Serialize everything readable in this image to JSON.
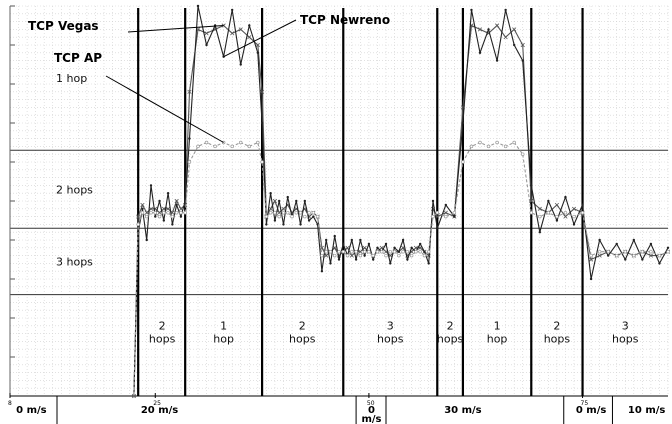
{
  "chart_data": {
    "type": "line",
    "xlim": [
      8,
      85
    ],
    "ylim": [
      0,
      1.0
    ],
    "grid": true,
    "x_ticks": [
      {
        "value": 8,
        "label": "8"
      },
      {
        "value": 25,
        "label": "25"
      },
      {
        "value": 50,
        "label": "50"
      },
      {
        "value": 75,
        "label": "75"
      }
    ],
    "hop_bands": [
      {
        "label": "1 hop",
        "range": [
          0.63,
          1.0
        ]
      },
      {
        "label": "2 hops",
        "range": [
          0.43,
          0.63
        ]
      },
      {
        "label": "3 hops",
        "range": [
          0.26,
          0.43
        ]
      }
    ],
    "band_lines": [
      0.63,
      0.43,
      0.26
    ],
    "phase_lines": [
      23,
      28.5,
      37.5,
      47,
      58,
      61,
      69,
      75
    ],
    "phase_labels": [
      {
        "x": 25.8,
        "lines": [
          "2",
          "hops"
        ]
      },
      {
        "x": 33,
        "lines": [
          "1",
          "hop"
        ]
      },
      {
        "x": 42.2,
        "lines": [
          "2",
          "hops"
        ]
      },
      {
        "x": 52.5,
        "lines": [
          "3",
          "hops"
        ]
      },
      {
        "x": 59.5,
        "lines": [
          "2",
          "hops"
        ]
      },
      {
        "x": 65,
        "lines": [
          "1",
          "hop"
        ]
      },
      {
        "x": 72,
        "lines": [
          "2",
          "hops"
        ]
      },
      {
        "x": 80,
        "lines": [
          "3",
          "hops"
        ]
      }
    ],
    "speed_dividers": [
      13.5,
      48.5,
      52,
      72.8,
      78.5
    ],
    "speed_labels": [
      {
        "x": 10.5,
        "lines": [
          "0 m/s"
        ]
      },
      {
        "x": 25.5,
        "lines": [
          "20 m/s"
        ]
      },
      {
        "x": 50.3,
        "lines": [
          "0",
          "m/s"
        ]
      },
      {
        "x": 61,
        "lines": [
          "30 m/s"
        ]
      },
      {
        "x": 76,
        "lines": [
          "0 m/s"
        ]
      },
      {
        "x": 82.5,
        "lines": [
          "10 m/s"
        ]
      }
    ],
    "series": [
      {
        "name": "TCP Vegas",
        "x": [
          8,
          22.5,
          23,
          23.5,
          24,
          24.5,
          25,
          25.5,
          26,
          26.5,
          27,
          27.5,
          28,
          28.5,
          29,
          30,
          31,
          32,
          33,
          34,
          35,
          36,
          37,
          37.5,
          38,
          38.5,
          39,
          39.5,
          40,
          40.5,
          41,
          41.5,
          42,
          42.5,
          43,
          43.5,
          44,
          44.5,
          45,
          45.5,
          46,
          46.5,
          47,
          47.5,
          48,
          48.5,
          49,
          49.5,
          50,
          50.5,
          51,
          51.5,
          52,
          52.5,
          53,
          53.5,
          54,
          54.5,
          55,
          55.5,
          56,
          56.5,
          57,
          57.5,
          58,
          59,
          60,
          61,
          62,
          63,
          64,
          65,
          66,
          67,
          68,
          69,
          70,
          71,
          72,
          73,
          74,
          75,
          76,
          77,
          78,
          79,
          80,
          81,
          82,
          83,
          84,
          85
        ],
        "y": [
          0,
          0,
          0.46,
          0.49,
          0.47,
          0.48,
          0.48,
          0.47,
          0.48,
          0.48,
          0.47,
          0.5,
          0.48,
          0.49,
          0.78,
          0.94,
          0.93,
          0.94,
          0.95,
          0.93,
          0.94,
          0.92,
          0.9,
          0.78,
          0.46,
          0.48,
          0.5,
          0.47,
          0.48,
          0.49,
          0.47,
          0.48,
          0.47,
          0.48,
          0.46,
          0.47,
          0.46,
          0.38,
          0.36,
          0.37,
          0.38,
          0.36,
          0.37,
          0.38,
          0.36,
          0.37,
          0.37,
          0.38,
          0.37,
          0.36,
          0.37,
          0.38,
          0.37,
          0.36,
          0.37,
          0.37,
          0.38,
          0.36,
          0.37,
          0.38,
          0.38,
          0.37,
          0.36,
          0.48,
          0.46,
          0.47,
          0.46,
          0.74,
          0.95,
          0.94,
          0.93,
          0.95,
          0.92,
          0.94,
          0.9,
          0.5,
          0.48,
          0.47,
          0.49,
          0.46,
          0.48,
          0.47,
          0.35,
          0.36,
          0.37,
          0.36,
          0.37,
          0.36,
          0.37,
          0.36,
          0.36,
          0.37
        ]
      },
      {
        "name": "TCP Newreno",
        "x": [
          8,
          22.5,
          23,
          23.5,
          24,
          24.5,
          25,
          25.5,
          26,
          26.5,
          27,
          27.5,
          28,
          28.5,
          29,
          30,
          31,
          32,
          33,
          34,
          35,
          36,
          37,
          37.5,
          38,
          38.5,
          39,
          39.5,
          40,
          40.5,
          41,
          41.5,
          42,
          42.5,
          43,
          43.5,
          44,
          44.5,
          45,
          45.5,
          46,
          46.5,
          47,
          47.5,
          48,
          48.5,
          49,
          49.5,
          50,
          50.5,
          51,
          51.5,
          52,
          52.5,
          53,
          53.5,
          54,
          54.5,
          55,
          55.5,
          56,
          56.5,
          57,
          57.5,
          58,
          59,
          60,
          61,
          62,
          63,
          64,
          65,
          66,
          67,
          68,
          69,
          70,
          71,
          72,
          73,
          74,
          75,
          76,
          77,
          78,
          79,
          80,
          81,
          82,
          83,
          84,
          85
        ],
        "y": [
          0,
          0,
          0.42,
          0.48,
          0.4,
          0.54,
          0.46,
          0.5,
          0.45,
          0.52,
          0.44,
          0.49,
          0.46,
          0.5,
          0.66,
          1.0,
          0.9,
          0.95,
          0.87,
          0.99,
          0.85,
          0.95,
          0.88,
          0.7,
          0.44,
          0.52,
          0.45,
          0.5,
          0.44,
          0.51,
          0.46,
          0.5,
          0.44,
          0.5,
          0.45,
          0.46,
          0.44,
          0.32,
          0.4,
          0.34,
          0.41,
          0.35,
          0.39,
          0.36,
          0.4,
          0.35,
          0.4,
          0.36,
          0.39,
          0.35,
          0.38,
          0.37,
          0.39,
          0.34,
          0.38,
          0.37,
          0.4,
          0.35,
          0.38,
          0.37,
          0.39,
          0.37,
          0.34,
          0.5,
          0.43,
          0.49,
          0.46,
          0.7,
          0.99,
          0.88,
          0.94,
          0.86,
          0.99,
          0.9,
          0.86,
          0.54,
          0.42,
          0.5,
          0.45,
          0.51,
          0.44,
          0.49,
          0.3,
          0.4,
          0.36,
          0.39,
          0.35,
          0.4,
          0.35,
          0.39,
          0.34,
          0.38
        ]
      },
      {
        "name": "TCP AP",
        "x": [
          8,
          22.5,
          23,
          23.5,
          24,
          24.5,
          25,
          25.5,
          26,
          26.5,
          27,
          27.5,
          28,
          28.5,
          29,
          30,
          31,
          32,
          33,
          34,
          35,
          36,
          37,
          37.5,
          38,
          38.5,
          39,
          39.5,
          40,
          40.5,
          41,
          41.5,
          42,
          42.5,
          43,
          43.5,
          44,
          44.5,
          45,
          45.5,
          46,
          46.5,
          47,
          47.5,
          48,
          48.5,
          49,
          49.5,
          50,
          50.5,
          51,
          51.5,
          52,
          52.5,
          53,
          53.5,
          54,
          54.5,
          55,
          55.5,
          56,
          56.5,
          57,
          57.5,
          58,
          59,
          60,
          61,
          62,
          63,
          64,
          65,
          66,
          67,
          68,
          69,
          70,
          71,
          72,
          73,
          74,
          75,
          76,
          77,
          78,
          79,
          80,
          81,
          82,
          83,
          84,
          85
        ],
        "y": [
          0,
          0,
          0.44,
          0.47,
          0.46,
          0.47,
          0.47,
          0.46,
          0.47,
          0.47,
          0.46,
          0.47,
          0.47,
          0.47,
          0.6,
          0.64,
          0.65,
          0.64,
          0.65,
          0.64,
          0.65,
          0.64,
          0.65,
          0.6,
          0.46,
          0.47,
          0.47,
          0.46,
          0.47,
          0.47,
          0.46,
          0.47,
          0.47,
          0.46,
          0.47,
          0.47,
          0.46,
          0.36,
          0.37,
          0.37,
          0.36,
          0.37,
          0.37,
          0.36,
          0.37,
          0.37,
          0.36,
          0.37,
          0.37,
          0.36,
          0.37,
          0.37,
          0.36,
          0.37,
          0.37,
          0.36,
          0.37,
          0.37,
          0.36,
          0.37,
          0.37,
          0.36,
          0.37,
          0.46,
          0.47,
          0.46,
          0.47,
          0.6,
          0.64,
          0.65,
          0.64,
          0.65,
          0.64,
          0.65,
          0.62,
          0.47,
          0.46,
          0.47,
          0.46,
          0.47,
          0.46,
          0.47,
          0.36,
          0.37,
          0.37,
          0.36,
          0.37,
          0.36,
          0.37,
          0.37,
          0.36,
          0.37
        ]
      }
    ],
    "annotations": [
      {
        "label": "TCP Vegas",
        "target_series": "TCP Vegas"
      },
      {
        "label": "TCP Newreno",
        "target_series": "TCP Newreno"
      },
      {
        "label": "TCP AP",
        "target_series": "TCP AP"
      }
    ]
  }
}
